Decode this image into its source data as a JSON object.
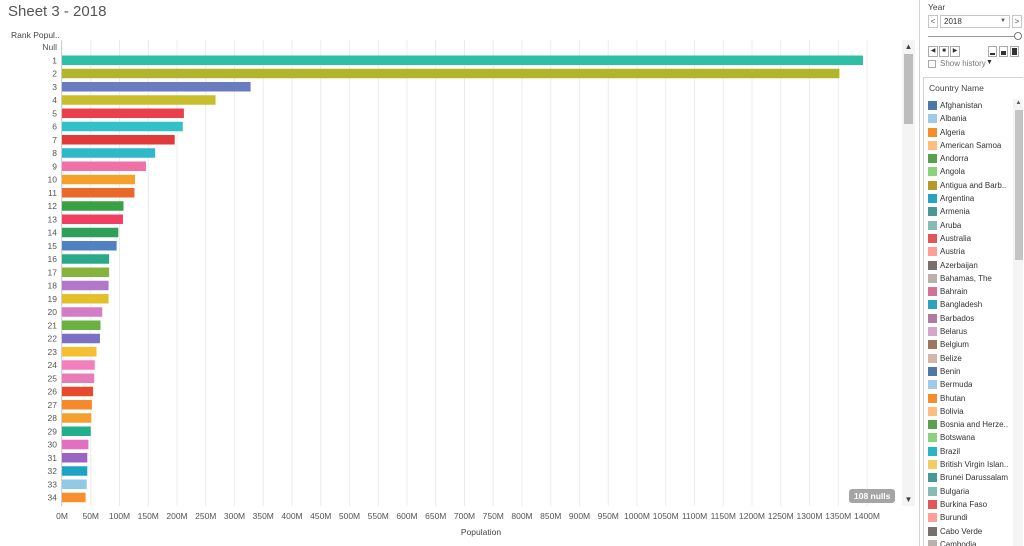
{
  "sheet": {
    "title": "Sheet 3 - 2018"
  },
  "chart_data": {
    "type": "bar",
    "orientation": "horizontal",
    "row_header": "Rank Popul..",
    "categories": [
      "Null",
      "1",
      "2",
      "3",
      "4",
      "5",
      "6",
      "7",
      "8",
      "9",
      "10",
      "11",
      "12",
      "13",
      "14",
      "15",
      "16",
      "17",
      "18",
      "19",
      "20",
      "21",
      "22",
      "23",
      "24",
      "25",
      "26",
      "27",
      "28",
      "29",
      "30",
      "31",
      "32",
      "33",
      "34"
    ],
    "values": [
      null,
      1393,
      1352,
      328,
      267,
      212,
      210,
      196,
      162,
      146,
      127,
      126,
      107,
      106,
      98,
      95,
      82,
      82,
      81,
      81,
      70,
      67,
      66,
      60,
      57,
      56,
      54,
      52,
      51,
      50,
      46,
      44,
      44,
      43,
      41
    ],
    "colors": [
      "#ffffff",
      "#2fbfa5",
      "#b2b52a",
      "#6a7cc0",
      "#c8bd2b",
      "#e8414b",
      "#31c1c6",
      "#e03a3a",
      "#2fb8c9",
      "#f070a8",
      "#f5a02a",
      "#e8692a",
      "#38a146",
      "#ef3f62",
      "#2ea05a",
      "#4f81c4",
      "#2ba887",
      "#86b33c",
      "#b177c8",
      "#e2c02a",
      "#d47cc8",
      "#6bb240",
      "#7c70c4",
      "#f6be30",
      "#f47fbf",
      "#e87cb8",
      "#e6492c",
      "#f58a2d",
      "#f5a030",
      "#22b08a",
      "#e36fc0",
      "#9a64c4",
      "#1fa3c5",
      "#92c9e6",
      "#f5902c"
    ],
    "xlabel": "Population",
    "xticks": [
      "0M",
      "50M",
      "100M",
      "150M",
      "200M",
      "250M",
      "300M",
      "350M",
      "400M",
      "450M",
      "500M",
      "550M",
      "600M",
      "650M",
      "700M",
      "750M",
      "800M",
      "850M",
      "900M",
      "950M",
      "1000M",
      "1050M",
      "1100M",
      "1150M",
      "1200M",
      "1250M",
      "1300M",
      "1350M",
      "1400M"
    ],
    "xlim": [
      0,
      1400
    ],
    "grid": true,
    "nulls_label": "108 nulls"
  },
  "filter": {
    "title": "Year",
    "prev_label": "<",
    "next_label": ">",
    "selected": "2018",
    "show_history": "Show history"
  },
  "legend": {
    "title": "Country Name",
    "items": [
      {
        "name": "Afghanistan",
        "color": "#4e79a7"
      },
      {
        "name": "Albania",
        "color": "#a0cbe8"
      },
      {
        "name": "Algeria",
        "color": "#f28e2b"
      },
      {
        "name": "American Samoa",
        "color": "#ffbe7d"
      },
      {
        "name": "Andorra",
        "color": "#59a14f"
      },
      {
        "name": "Angola",
        "color": "#8cd17d"
      },
      {
        "name": "Antigua and Barb..",
        "color": "#b6992d"
      },
      {
        "name": "Argentina",
        "color": "#2ba3bf"
      },
      {
        "name": "Armenia",
        "color": "#499894"
      },
      {
        "name": "Aruba",
        "color": "#86bcb6"
      },
      {
        "name": "Australia",
        "color": "#e15759"
      },
      {
        "name": "Austria",
        "color": "#ff9d9a"
      },
      {
        "name": "Azerbaijan",
        "color": "#79706e"
      },
      {
        "name": "Bahamas, The",
        "color": "#bab0ac"
      },
      {
        "name": "Bahrain",
        "color": "#d37295"
      },
      {
        "name": "Bangladesh",
        "color": "#2ba3bf"
      },
      {
        "name": "Barbados",
        "color": "#b07aa1"
      },
      {
        "name": "Belarus",
        "color": "#d4a6c8"
      },
      {
        "name": "Belgium",
        "color": "#9d7660"
      },
      {
        "name": "Belize",
        "color": "#d7b5a6"
      },
      {
        "name": "Benin",
        "color": "#4e79a7"
      },
      {
        "name": "Bermuda",
        "color": "#a0cbe8"
      },
      {
        "name": "Bhutan",
        "color": "#f28e2b"
      },
      {
        "name": "Bolivia",
        "color": "#ffbe7d"
      },
      {
        "name": "Bosnia and Herze..",
        "color": "#59a14f"
      },
      {
        "name": "Botswana",
        "color": "#8cd17d"
      },
      {
        "name": "Brazil",
        "color": "#2bb5c4"
      },
      {
        "name": "British Virgin Islan..",
        "color": "#f1ce63"
      },
      {
        "name": "Brunei Darussalam",
        "color": "#499894"
      },
      {
        "name": "Bulgaria",
        "color": "#86bcb6"
      },
      {
        "name": "Burkina Faso",
        "color": "#e15759"
      },
      {
        "name": "Burundi",
        "color": "#ff9d9a"
      },
      {
        "name": "Cabo Verde",
        "color": "#79706e"
      },
      {
        "name": "Cambodia",
        "color": "#bab0ac"
      }
    ]
  }
}
